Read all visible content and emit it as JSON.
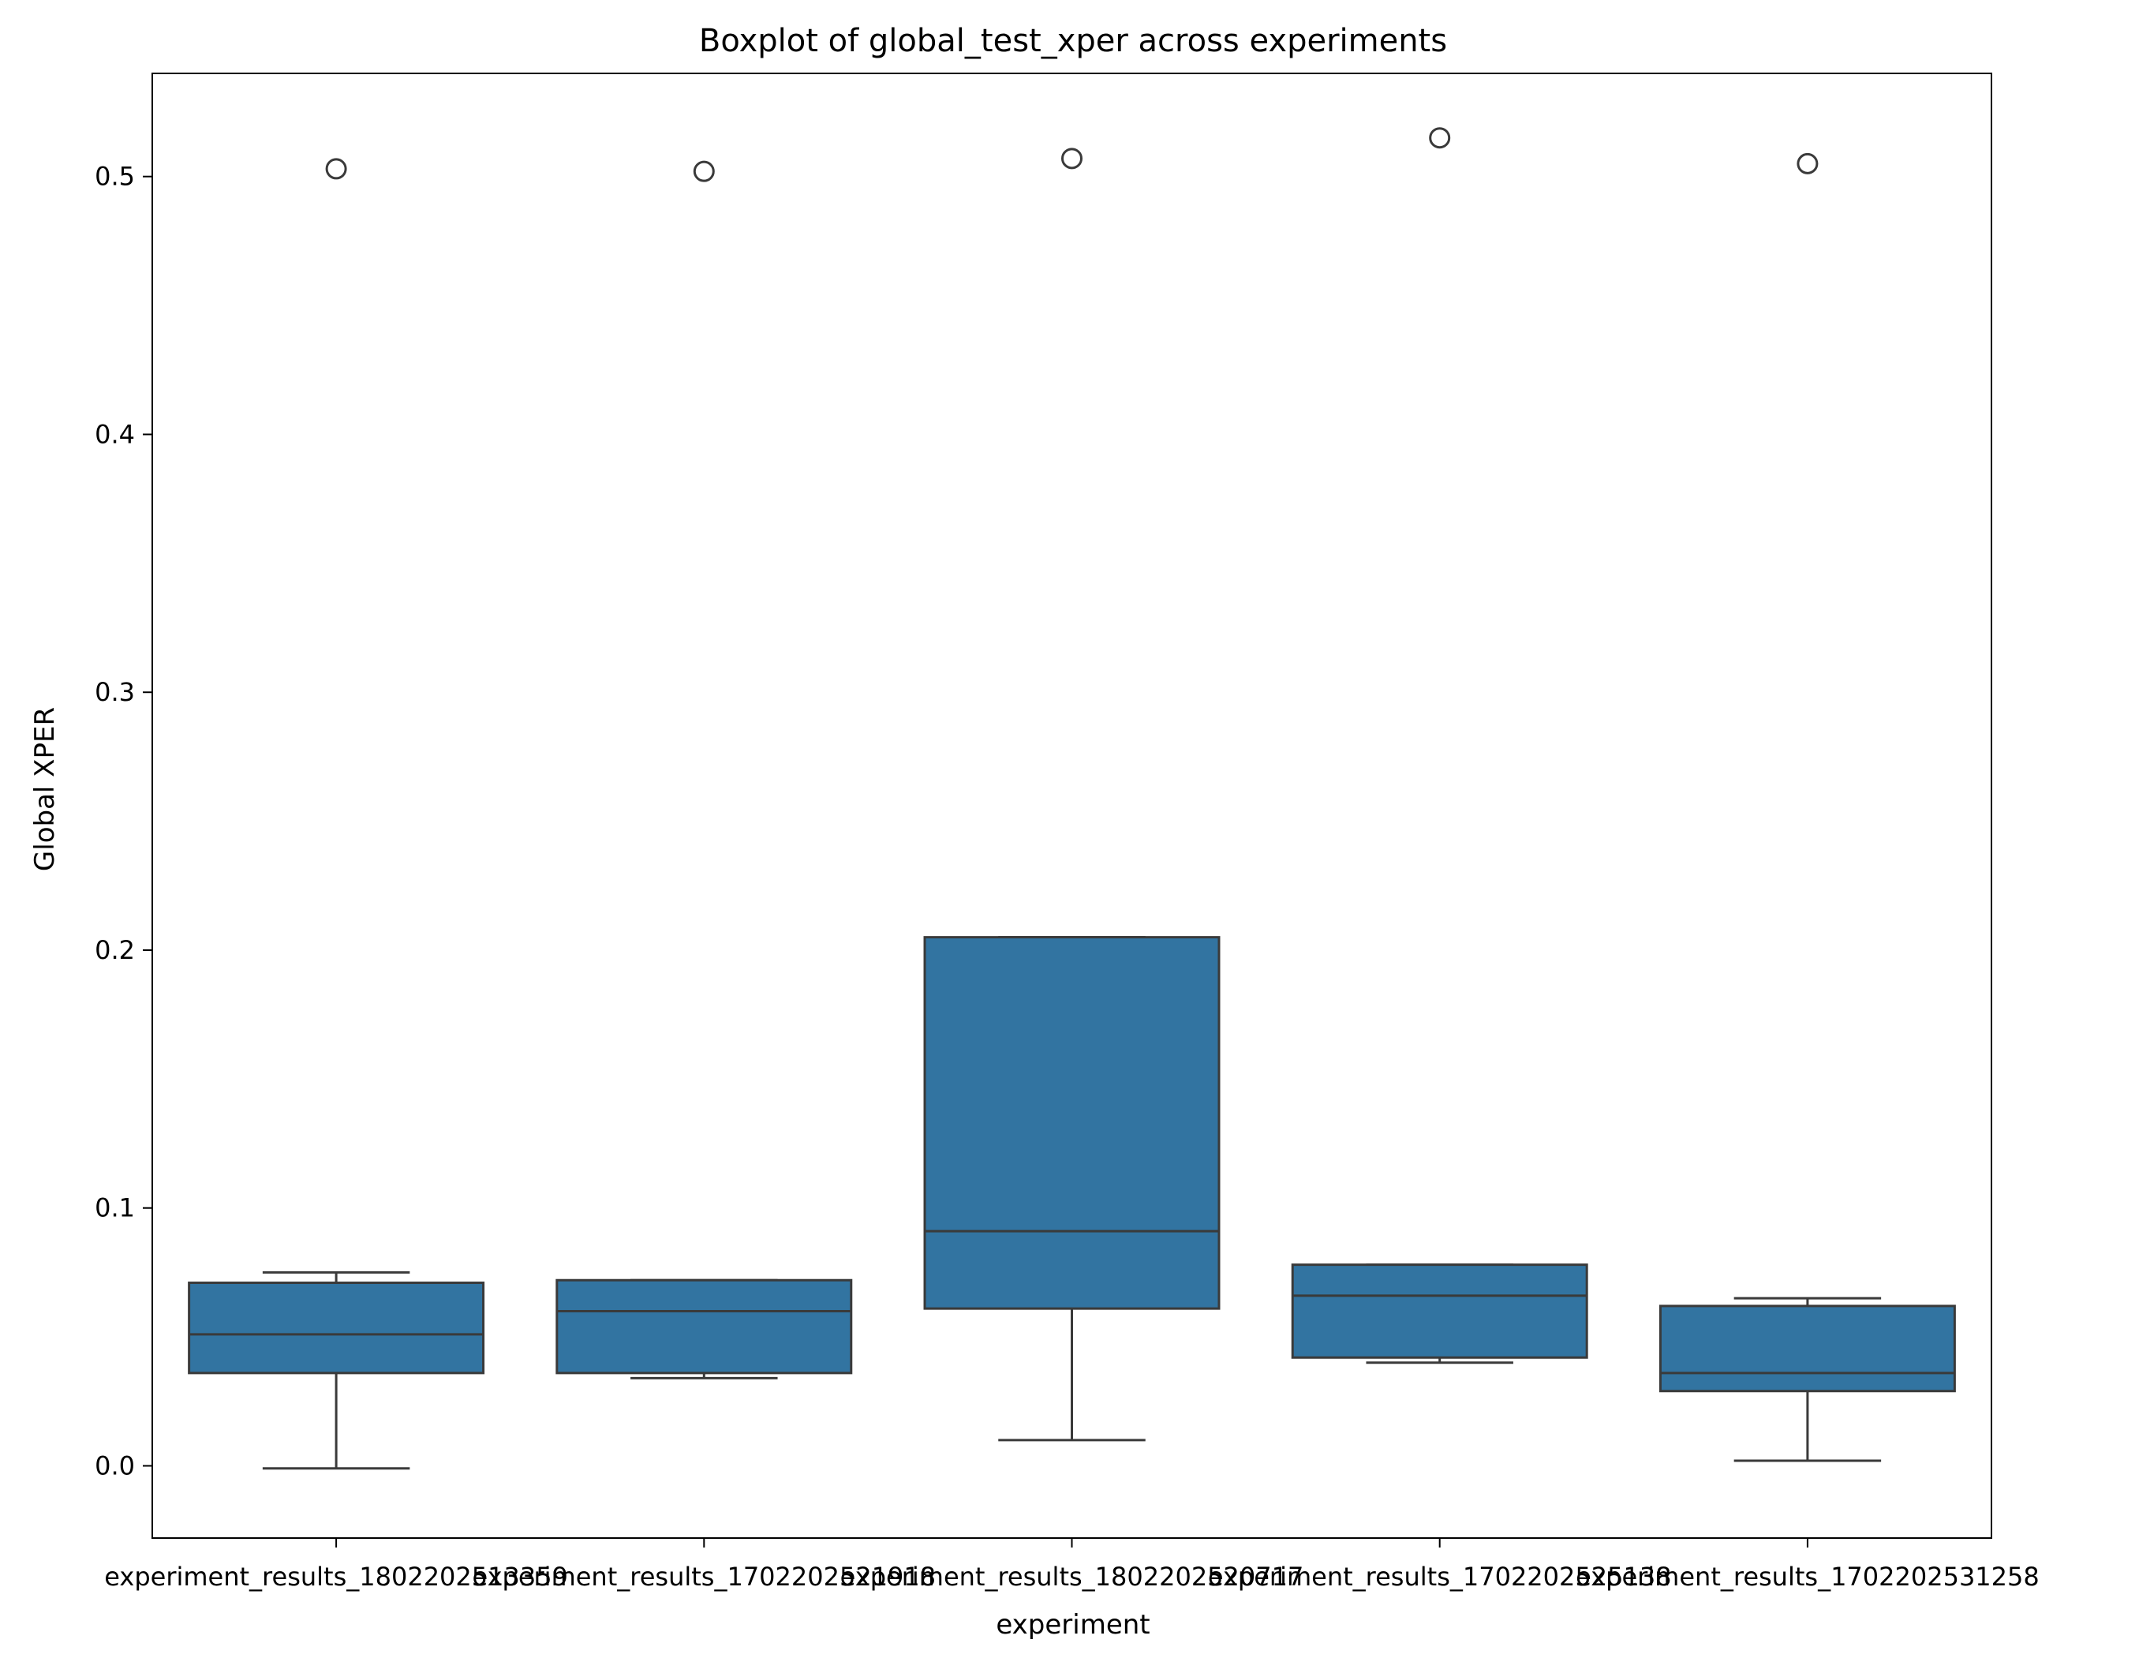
{
  "chart_data": {
    "type": "box",
    "title": "Boxplot of global_test_xper across experiments",
    "xlabel": "experiment",
    "ylabel": "Global XPER",
    "ylim": [
      -0.028,
      0.54
    ],
    "yticks": [
      "0.0",
      "0.1",
      "0.2",
      "0.3",
      "0.4",
      "0.5"
    ],
    "ytick_values": [
      0.0,
      0.1,
      0.2,
      0.3,
      0.4,
      0.5
    ],
    "grid": false,
    "box_color": "#3274a1",
    "line_color": "#3a3a3a",
    "categories": [
      "experiment_results_1802202513359",
      "experiment_results_1702202521918",
      "experiment_results_1802202520717",
      "experiment_results_1702202525138",
      "experiment_results_1702202531258"
    ],
    "boxes": [
      {
        "whisker_low": -0.001,
        "q1": 0.036,
        "median": 0.051,
        "q3": 0.071,
        "whisker_high": 0.075,
        "outliers": [
          0.503
        ]
      },
      {
        "whisker_low": 0.034,
        "q1": 0.036,
        "median": 0.06,
        "q3": 0.072,
        "whisker_high": 0.072,
        "outliers": [
          0.502
        ]
      },
      {
        "whisker_low": 0.01,
        "q1": 0.061,
        "median": 0.091,
        "q3": 0.205,
        "whisker_high": 0.205,
        "outliers": [
          0.507
        ]
      },
      {
        "whisker_low": 0.04,
        "q1": 0.042,
        "median": 0.066,
        "q3": 0.078,
        "whisker_high": 0.078,
        "outliers": [
          0.515
        ]
      },
      {
        "whisker_low": 0.002,
        "q1": 0.029,
        "median": 0.036,
        "q3": 0.062,
        "whisker_high": 0.065,
        "outliers": [
          0.505
        ]
      }
    ]
  }
}
